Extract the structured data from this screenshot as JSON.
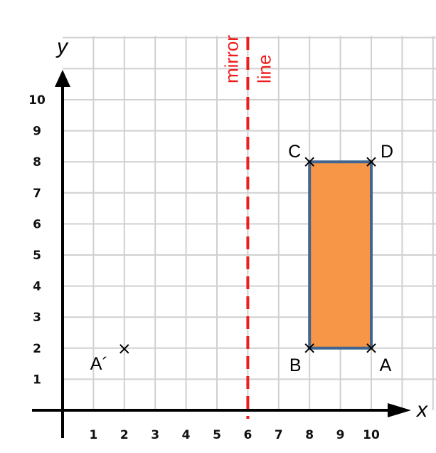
{
  "axes": {
    "x_label": "x",
    "y_label": "y",
    "x_ticks": [
      1,
      2,
      3,
      4,
      5,
      6,
      7,
      8,
      9,
      10
    ],
    "y_ticks": [
      1,
      2,
      3,
      4,
      5,
      6,
      7,
      8,
      9,
      10
    ],
    "grid_extent": [
      12,
      12
    ]
  },
  "mirror": {
    "x": 6,
    "label_line1": "mirror",
    "label_line2": "line",
    "color": "#ee1c1c"
  },
  "shape": {
    "fill": "#f79646",
    "stroke": "#41658f",
    "vertices": [
      {
        "name": "A",
        "x": 10,
        "y": 2
      },
      {
        "name": "B",
        "x": 8,
        "y": 2
      },
      {
        "name": "C",
        "x": 8,
        "y": 8
      },
      {
        "name": "D",
        "x": 10,
        "y": 8
      }
    ]
  },
  "image_point": {
    "name": "A´",
    "x": 2,
    "y": 2
  }
}
